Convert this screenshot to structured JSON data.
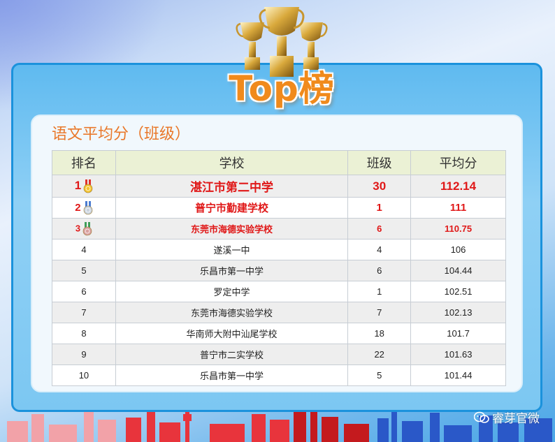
{
  "header": {
    "title": "Top榜"
  },
  "section": {
    "title": "语文平均分（班级）"
  },
  "table": {
    "columns": [
      "排名",
      "学校",
      "班级",
      "平均分"
    ],
    "rows": [
      {
        "rank": "1",
        "school": "湛江市第二中学",
        "class": "30",
        "avg": "112.14",
        "medal": "gold"
      },
      {
        "rank": "2",
        "school": "普宁市勤建学校",
        "class": "1",
        "avg": "111",
        "medal": "silver"
      },
      {
        "rank": "3",
        "school": "东莞市海德实验学校",
        "class": "6",
        "avg": "110.75",
        "medal": "bronze"
      },
      {
        "rank": "4",
        "school": "遂溪一中",
        "class": "4",
        "avg": "106"
      },
      {
        "rank": "5",
        "school": "乐昌市第一中学",
        "class": "6",
        "avg": "104.44"
      },
      {
        "rank": "6",
        "school": "罗定中学",
        "class": "1",
        "avg": "102.51"
      },
      {
        "rank": "7",
        "school": "东莞市海德实验学校",
        "class": "7",
        "avg": "102.13"
      },
      {
        "rank": "8",
        "school": "华南师大附中汕尾学校",
        "class": "18",
        "avg": "101.7"
      },
      {
        "rank": "9",
        "school": "普宁市二实学校",
        "class": "22",
        "avg": "101.63"
      },
      {
        "rank": "10",
        "school": "乐昌市第一中学",
        "class": "5",
        "avg": "101.44"
      }
    ]
  },
  "watermark": {
    "text": "睿芽官微"
  },
  "colors": {
    "accent_orange": "#f08a1c",
    "highlight_red": "#e01818",
    "frame_blue": "#1b92dc"
  }
}
